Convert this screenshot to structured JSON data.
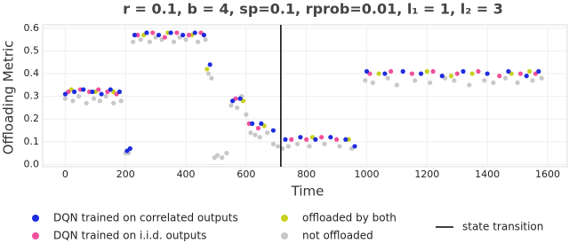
{
  "chart_data": {
    "type": "scatter",
    "title": "r = 0.1, b = 4, sp=0.1, rprob=0.01, l₁ = 1, l₂ = 3",
    "x_label": "Time",
    "y_label": "Offloading Metric",
    "xlim": [
      -75,
      1665
    ],
    "ylim": [
      -0.01,
      0.615
    ],
    "xticks": [
      0,
      200,
      400,
      600,
      800,
      1000,
      1200,
      1400,
      1600
    ],
    "yticks": [
      {
        "value": 0,
        "label": "0.0"
      },
      0.1,
      0.2,
      0.3,
      0.4,
      0.5,
      0.6
    ],
    "vlines": [
      {
        "name": "state transition",
        "x": 715,
        "color": "#000000"
      }
    ],
    "series": [
      {
        "name": "DQN trained on correlated outputs",
        "color": "#1f2de0",
        "x": [
          0,
          30,
          60,
          90,
          120,
          150,
          180,
          205,
          215,
          230,
          270,
          310,
          350,
          390,
          430,
          460,
          480,
          555,
          580,
          620,
          650,
          690,
          730,
          780,
          830,
          880,
          930,
          960,
          1000,
          1060,
          1120,
          1180,
          1250,
          1320,
          1400,
          1470,
          1530,
          1570
        ],
        "values": [
          0.31,
          0.32,
          0.33,
          0.32,
          0.31,
          0.33,
          0.32,
          0.06,
          0.07,
          0.57,
          0.58,
          0.57,
          0.58,
          0.57,
          0.58,
          0.57,
          0.44,
          0.28,
          0.29,
          0.18,
          0.18,
          0.15,
          0.11,
          0.12,
          0.11,
          0.12,
          0.11,
          0.08,
          0.41,
          0.4,
          0.41,
          0.4,
          0.39,
          0.41,
          0.4,
          0.41,
          0.39,
          0.41
        ]
      },
      {
        "name": "DQN trained on i.i.d. outputs",
        "color": "#f0509a",
        "x": [
          10,
          50,
          80,
          110,
          140,
          170,
          240,
          290,
          330,
          370,
          410,
          450,
          565,
          610,
          640,
          750,
          800,
          850,
          900,
          1010,
          1080,
          1150,
          1220,
          1300,
          1370,
          1440,
          1510,
          1560
        ],
        "values": [
          0.32,
          0.33,
          0.32,
          0.33,
          0.32,
          0.31,
          0.57,
          0.58,
          0.56,
          0.58,
          0.57,
          0.58,
          0.29,
          0.18,
          0.16,
          0.11,
          0.11,
          0.12,
          0.11,
          0.4,
          0.41,
          0.4,
          0.41,
          0.4,
          0.41,
          0.39,
          0.4,
          0.4
        ]
      },
      {
        "name": "offloaded by both",
        "color": "#c8d21e",
        "x": [
          20,
          100,
          160,
          260,
          340,
          420,
          470,
          590,
          660,
          820,
          940,
          1040,
          1200,
          1280,
          1350,
          1480,
          1540
        ],
        "values": [
          0.33,
          0.32,
          0.32,
          0.57,
          0.58,
          0.57,
          0.42,
          0.28,
          0.17,
          0.12,
          0.11,
          0.4,
          0.41,
          0.39,
          0.4,
          0.4,
          0.41
        ]
      },
      {
        "name": "not offloaded",
        "color": "#c8c8c8",
        "x": [
          0,
          25,
          45,
          70,
          95,
          115,
          135,
          160,
          185,
          200,
          210,
          225,
          250,
          280,
          300,
          320,
          360,
          380,
          400,
          440,
          465,
          475,
          485,
          495,
          505,
          520,
          535,
          550,
          570,
          585,
          600,
          615,
          630,
          645,
          670,
          690,
          705,
          720,
          740,
          770,
          810,
          860,
          910,
          950,
          995,
          1020,
          1070,
          1100,
          1160,
          1210,
          1260,
          1290,
          1340,
          1390,
          1420,
          1460,
          1500,
          1550,
          1580
        ],
        "values": [
          0.29,
          0.28,
          0.3,
          0.27,
          0.29,
          0.28,
          0.3,
          0.27,
          0.28,
          0.05,
          0.05,
          0.54,
          0.55,
          0.54,
          0.56,
          0.55,
          0.54,
          0.56,
          0.55,
          0.54,
          0.55,
          0.4,
          0.38,
          0.03,
          0.04,
          0.03,
          0.05,
          0.26,
          0.25,
          0.3,
          0.22,
          0.14,
          0.13,
          0.12,
          0.14,
          0.09,
          0.08,
          0.07,
          0.08,
          0.09,
          0.08,
          0.09,
          0.08,
          0.07,
          0.37,
          0.36,
          0.38,
          0.35,
          0.37,
          0.36,
          0.38,
          0.37,
          0.35,
          0.37,
          0.36,
          0.38,
          0.36,
          0.37,
          0.38
        ]
      }
    ]
  }
}
